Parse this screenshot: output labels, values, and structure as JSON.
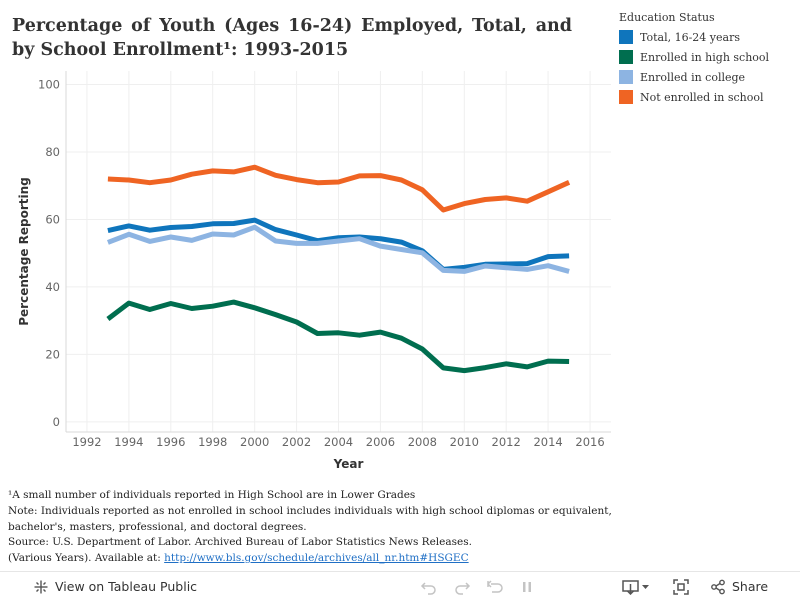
{
  "title": "Percentage of Youth (Ages 16-24) Employed, Total, and by School Enrollment¹: 1993-2015",
  "legend": {
    "title": "Education Status",
    "items": [
      {
        "label": "Total, 16-24 years",
        "color": "#0f75bc"
      },
      {
        "label": "Enrolled in high school",
        "color": "#006e4f"
      },
      {
        "label": "Enrolled in college",
        "color": "#8db4e2"
      },
      {
        "label": "Not enrolled in school",
        "color": "#ef6423"
      }
    ]
  },
  "chart_data": {
    "type": "line",
    "title": "Percentage of Youth (Ages 16-24) Employed, Total, and by School Enrollment¹: 1993-2015",
    "xlabel": "Year",
    "ylabel": "Percentage Reporting",
    "xlim": [
      1991,
      2017
    ],
    "ylim": [
      -3,
      104
    ],
    "x_ticks": [
      1992,
      1994,
      1996,
      1998,
      2000,
      2002,
      2004,
      2006,
      2008,
      2010,
      2012,
      2014,
      2016
    ],
    "y_ticks": [
      0,
      20,
      40,
      60,
      80,
      100
    ],
    "grid": true,
    "legend_position": "top-right",
    "x": [
      1993,
      1994,
      1995,
      1996,
      1997,
      1998,
      1999,
      2000,
      2001,
      2002,
      2003,
      2004,
      2005,
      2006,
      2007,
      2008,
      2009,
      2010,
      2011,
      2012,
      2013,
      2014,
      2015
    ],
    "series": [
      {
        "name": "Not enrolled in school",
        "color": "#ef6423",
        "values": [
          72.0,
          71.7,
          70.9,
          71.7,
          73.4,
          74.4,
          74.1,
          75.5,
          73.1,
          71.8,
          70.9,
          71.1,
          72.9,
          73.0,
          71.7,
          68.8,
          62.8,
          64.7,
          65.9,
          66.4,
          65.4,
          68.2,
          71.0
        ]
      },
      {
        "name": "Total, 16-24 years",
        "color": "#0f75bc",
        "values": [
          56.7,
          58.1,
          56.8,
          57.6,
          57.9,
          58.7,
          58.8,
          59.8,
          57.0,
          55.4,
          53.7,
          54.6,
          54.8,
          54.3,
          53.3,
          50.7,
          45.2,
          45.8,
          46.7,
          46.8,
          46.9,
          49.0,
          49.2
        ]
      },
      {
        "name": "Enrolled in college",
        "color": "#8db4e2",
        "values": [
          53.2,
          55.6,
          53.5,
          54.8,
          53.8,
          55.7,
          55.4,
          57.7,
          53.6,
          52.9,
          52.9,
          53.6,
          54.3,
          52.1,
          51.1,
          50.1,
          44.9,
          44.6,
          46.2,
          45.7,
          45.2,
          46.3,
          44.6
        ]
      },
      {
        "name": "Enrolled in high school",
        "color": "#006e4f",
        "values": [
          30.5,
          35.2,
          33.3,
          35.1,
          33.6,
          34.3,
          35.5,
          33.8,
          31.8,
          29.6,
          26.2,
          26.4,
          25.7,
          26.6,
          24.8,
          21.6,
          16.0,
          15.2,
          16.1,
          17.2,
          16.3,
          18.0,
          17.9
        ]
      }
    ]
  },
  "notes": {
    "line1": "¹A small number of individuals reported in High School are in Lower Grades",
    "line2": "Note: Individuals reported as not enrolled in school includes individuals with high school diplomas or equivalent,",
    "line3": "bachelor's, masters, professional, and doctoral degrees.",
    "line4": "Source: U.S. Department of Labor. Archived Bureau of Labor Statistics News Releases.",
    "line5_text": "(Various Years).  Available at: ",
    "link": "http://www.bls.gov/schedule/archives/all_nr.htm#HSGEC"
  },
  "toolbar": {
    "view_label": "View on Tableau Public",
    "share_label": "Share",
    "icons": [
      "tableau-logo-icon",
      "undo-icon",
      "redo-icon",
      "revert-icon",
      "pause-icon",
      "download-icon",
      "fullscreen-icon",
      "share-icon"
    ]
  }
}
